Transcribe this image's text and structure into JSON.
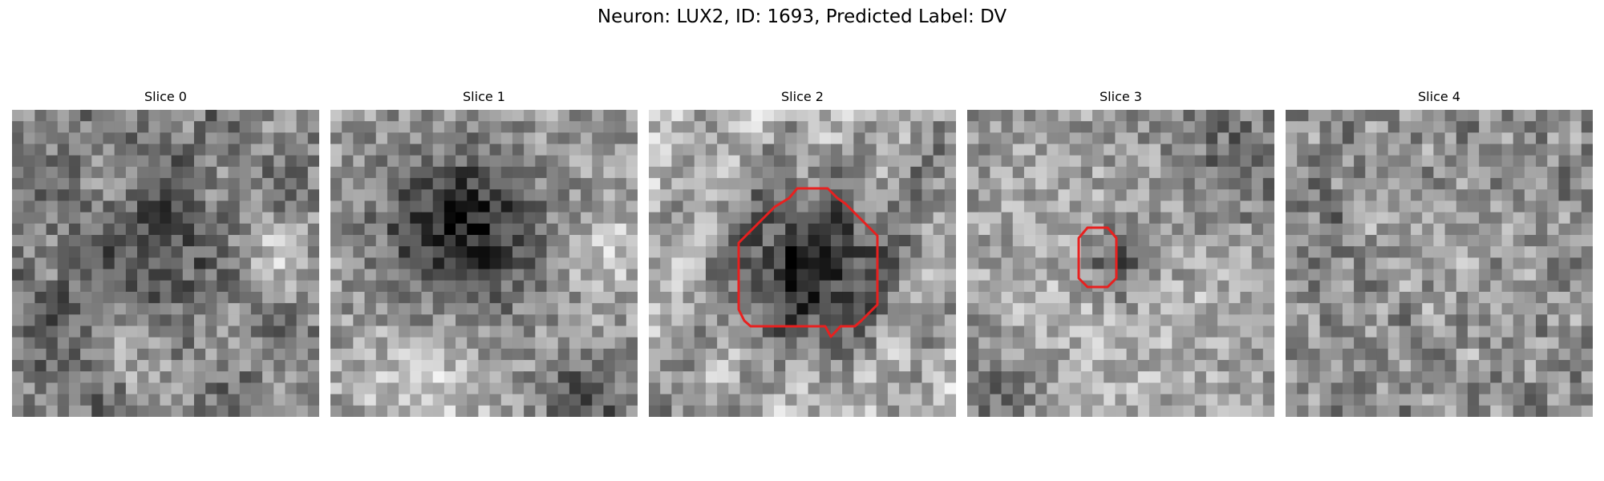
{
  "figure": {
    "title": "Neuron: LUX2, ID: 1693, Predicted Label: DV"
  },
  "slices": [
    {
      "title": "Slice 0",
      "contour": false
    },
    {
      "title": "Slice 1",
      "contour": false
    },
    {
      "title": "Slice 2",
      "contour": true
    },
    {
      "title": "Slice 3",
      "contour": true
    },
    {
      "title": "Slice 4",
      "contour": false
    }
  ],
  "colors": {
    "contour": "#e8201f",
    "pixel_dark": "#000000",
    "pixel_light": "#ffffff"
  },
  "image": {
    "grid_size": 27,
    "colormap": "gray"
  }
}
